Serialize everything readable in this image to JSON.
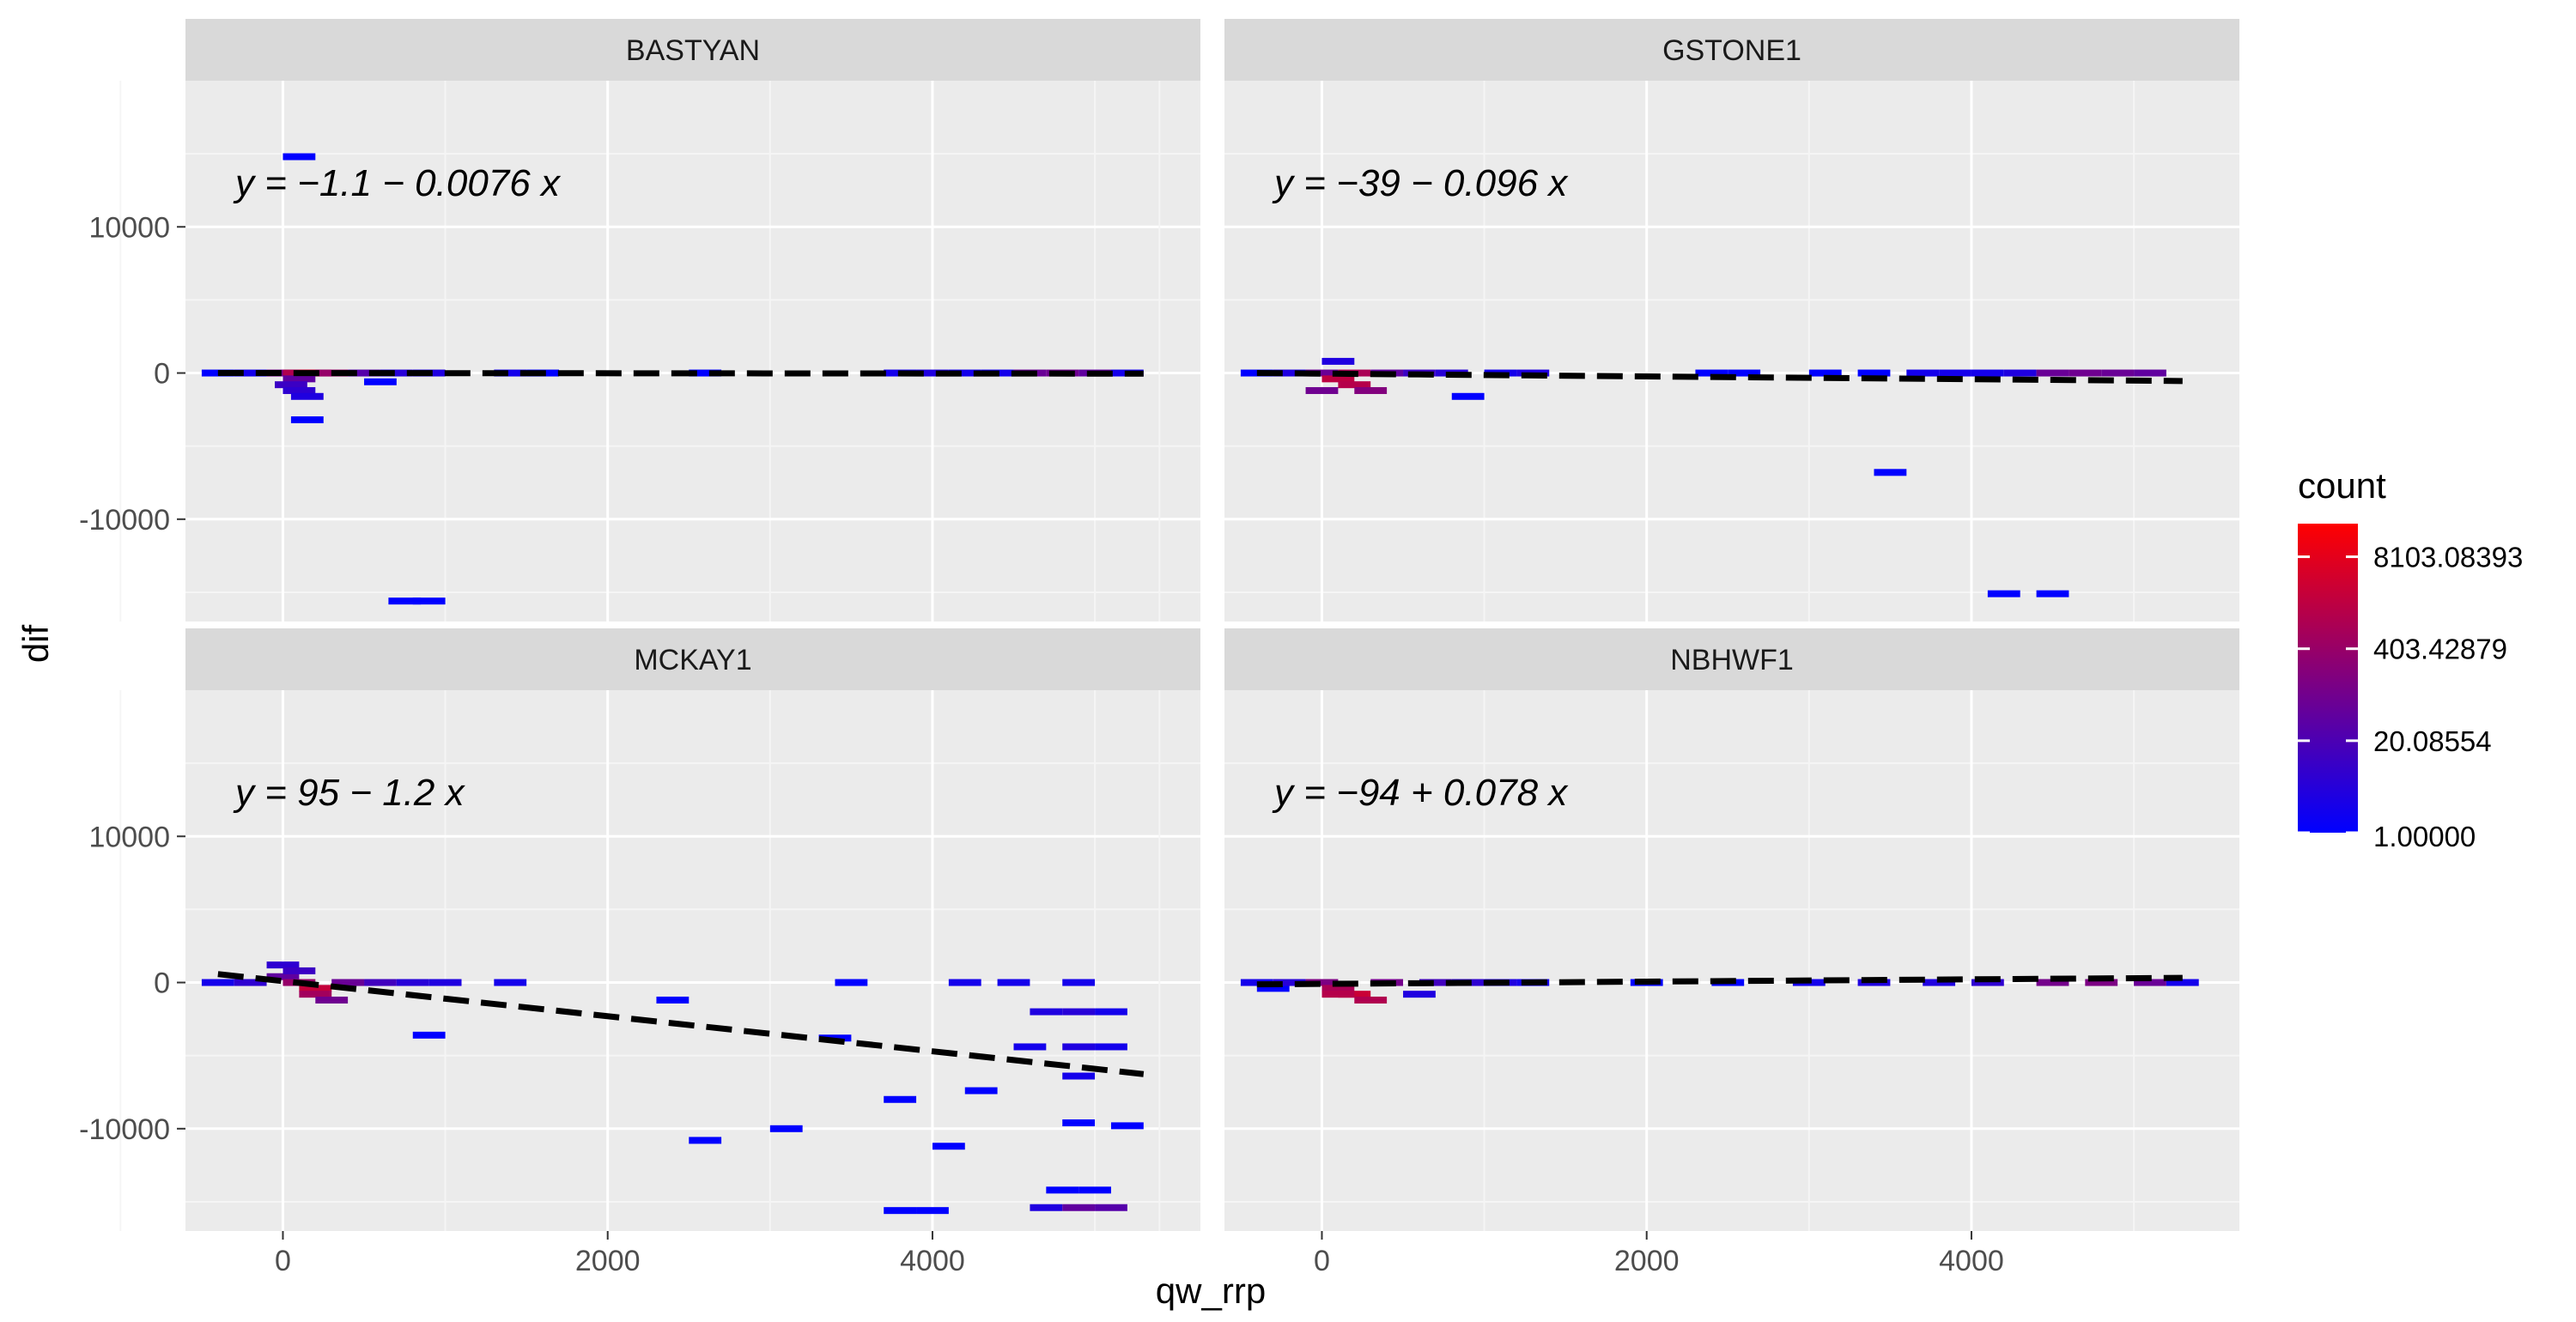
{
  "chart_data": {
    "type": "heatmap",
    "xlabel": "qw_rrp",
    "ylabel": "dif",
    "xlim": [
      -600,
      5650
    ],
    "ylim": [
      -17000,
      20000
    ],
    "x_ticks": [
      0,
      2000,
      4000
    ],
    "y_ticks": [
      -10000,
      0,
      10000
    ],
    "y_tick_labels": [
      "-10000",
      "0",
      "10000"
    ],
    "grid": true,
    "legend": {
      "title": "count",
      "placement": "right",
      "labels": [
        "8103.08393",
        "403.42879",
        "20.08554",
        "1.00000"
      ],
      "values": [
        8103.08393,
        403.42879,
        20.08554,
        1.0
      ],
      "colors": [
        "#ff0000",
        "#0000ff"
      ]
    },
    "facets": [
      {
        "name": "BASTYAN",
        "equation": "y = −1.1 − 0.0076 x",
        "fit": {
          "intercept": -1.1,
          "slope": -0.0076,
          "x": [
            -400,
            5300
          ]
        },
        "cells": [
          [
            -400,
            0,
            1
          ],
          [
            -200,
            0,
            2
          ],
          [
            0,
            0,
            60
          ],
          [
            100,
            0,
            500
          ],
          [
            200,
            0,
            1500
          ],
          [
            300,
            0,
            200
          ],
          [
            100,
            -400,
            30
          ],
          [
            50,
            -800,
            8
          ],
          [
            100,
            -1200,
            5
          ],
          [
            150,
            -1600,
            3
          ],
          [
            150,
            -3200,
            1
          ],
          [
            100,
            14800,
            1
          ],
          [
            600,
            -600,
            1
          ],
          [
            500,
            0,
            20
          ],
          [
            700,
            0,
            4
          ],
          [
            900,
            0,
            3
          ],
          [
            1400,
            0,
            2
          ],
          [
            1600,
            0,
            1
          ],
          [
            2600,
            0,
            1
          ],
          [
            3800,
            0,
            2
          ],
          [
            4000,
            0,
            3
          ],
          [
            4200,
            0,
            2
          ],
          [
            4400,
            0,
            2
          ],
          [
            4600,
            0,
            40
          ],
          [
            4800,
            0,
            50
          ],
          [
            5000,
            0,
            30
          ],
          [
            5200,
            0,
            2
          ],
          [
            750,
            -15600,
            1
          ],
          [
            900,
            -15600,
            1
          ]
        ]
      },
      {
        "name": "GSTONE1",
        "equation": "y = −39 − 0.096 x",
        "fit": {
          "intercept": -39,
          "slope": -0.096,
          "x": [
            -400,
            5300
          ]
        },
        "cells": [
          [
            -400,
            0,
            1
          ],
          [
            -200,
            0,
            3
          ],
          [
            0,
            0,
            40
          ],
          [
            100,
            -400,
            800
          ],
          [
            200,
            -800,
            600
          ],
          [
            300,
            -1200,
            100
          ],
          [
            0,
            -1200,
            50
          ],
          [
            100,
            800,
            3
          ],
          [
            200,
            0,
            400
          ],
          [
            400,
            0,
            30
          ],
          [
            600,
            0,
            8
          ],
          [
            800,
            0,
            4
          ],
          [
            900,
            -1600,
            1
          ],
          [
            1100,
            0,
            2
          ],
          [
            1300,
            0,
            3
          ],
          [
            2400,
            0,
            1
          ],
          [
            2600,
            0,
            1
          ],
          [
            3100,
            0,
            1
          ],
          [
            3400,
            0,
            1
          ],
          [
            3700,
            0,
            2
          ],
          [
            3900,
            0,
            2
          ],
          [
            4100,
            0,
            2
          ],
          [
            4300,
            0,
            3
          ],
          [
            4500,
            0,
            40
          ],
          [
            4700,
            0,
            50
          ],
          [
            4900,
            0,
            40
          ],
          [
            5100,
            0,
            30
          ],
          [
            3500,
            -6800,
            1
          ],
          [
            4200,
            -15100,
            1
          ],
          [
            4500,
            -15100,
            1
          ]
        ]
      },
      {
        "name": "MCKAY1",
        "equation": "y = 95 − 1.2 x",
        "fit": {
          "intercept": 95,
          "slope": -1.2,
          "x": [
            -400,
            5300
          ]
        },
        "cells": [
          [
            -400,
            0,
            2
          ],
          [
            -200,
            0,
            5
          ],
          [
            0,
            400,
            30
          ],
          [
            0,
            1200,
            5
          ],
          [
            100,
            800,
            8
          ],
          [
            100,
            0,
            200
          ],
          [
            200,
            -400,
            1000
          ],
          [
            200,
            -800,
            300
          ],
          [
            300,
            -1200,
            50
          ],
          [
            400,
            0,
            40
          ],
          [
            600,
            0,
            10
          ],
          [
            800,
            0,
            4
          ],
          [
            1000,
            0,
            3
          ],
          [
            1400,
            0,
            2
          ],
          [
            900,
            -3600,
            1
          ],
          [
            2400,
            -1200,
            1
          ],
          [
            2600,
            -10800,
            1
          ],
          [
            3100,
            -10000,
            1
          ],
          [
            3400,
            -3800,
            1
          ],
          [
            3500,
            0,
            1
          ],
          [
            3800,
            -8000,
            1
          ],
          [
            4000,
            -15600,
            1
          ],
          [
            3800,
            -15600,
            1
          ],
          [
            4100,
            -11200,
            1
          ],
          [
            4300,
            -7400,
            1
          ],
          [
            4200,
            0,
            2
          ],
          [
            4500,
            0,
            2
          ],
          [
            4700,
            -2000,
            3
          ],
          [
            4900,
            -2000,
            4
          ],
          [
            5100,
            -2000,
            2
          ],
          [
            4600,
            -4400,
            2
          ],
          [
            4900,
            -4400,
            3
          ],
          [
            5100,
            -4400,
            2
          ],
          [
            4900,
            -6400,
            2
          ],
          [
            4900,
            -9600,
            1
          ],
          [
            5200,
            -9800,
            1
          ],
          [
            4700,
            -15400,
            3
          ],
          [
            4900,
            -15400,
            30
          ],
          [
            5100,
            -15400,
            20
          ],
          [
            4800,
            -14200,
            1
          ],
          [
            5000,
            -14200,
            1
          ],
          [
            4900,
            0,
            2
          ]
        ]
      },
      {
        "name": "NBHWF1",
        "equation": "y = −94 + 0.078 x",
        "fit": {
          "intercept": -94,
          "slope": 0.078,
          "x": [
            -400,
            5300
          ]
        },
        "cells": [
          [
            -400,
            0,
            2
          ],
          [
            -300,
            -400,
            1
          ],
          [
            -200,
            0,
            4
          ],
          [
            0,
            0,
            80
          ],
          [
            100,
            -400,
            400
          ],
          [
            200,
            -800,
            1200
          ],
          [
            300,
            -1200,
            500
          ],
          [
            100,
            -800,
            600
          ],
          [
            400,
            0,
            60
          ],
          [
            600,
            -800,
            3
          ],
          [
            700,
            0,
            10
          ],
          [
            900,
            0,
            5
          ],
          [
            1100,
            0,
            3
          ],
          [
            1300,
            0,
            2
          ],
          [
            2000,
            0,
            1
          ],
          [
            2500,
            0,
            1
          ],
          [
            3000,
            0,
            2
          ],
          [
            3400,
            0,
            3
          ],
          [
            3800,
            0,
            3
          ],
          [
            4100,
            0,
            5
          ],
          [
            4500,
            0,
            60
          ],
          [
            4800,
            0,
            80
          ],
          [
            5100,
            0,
            40
          ],
          [
            5300,
            0,
            2
          ]
        ]
      }
    ]
  }
}
